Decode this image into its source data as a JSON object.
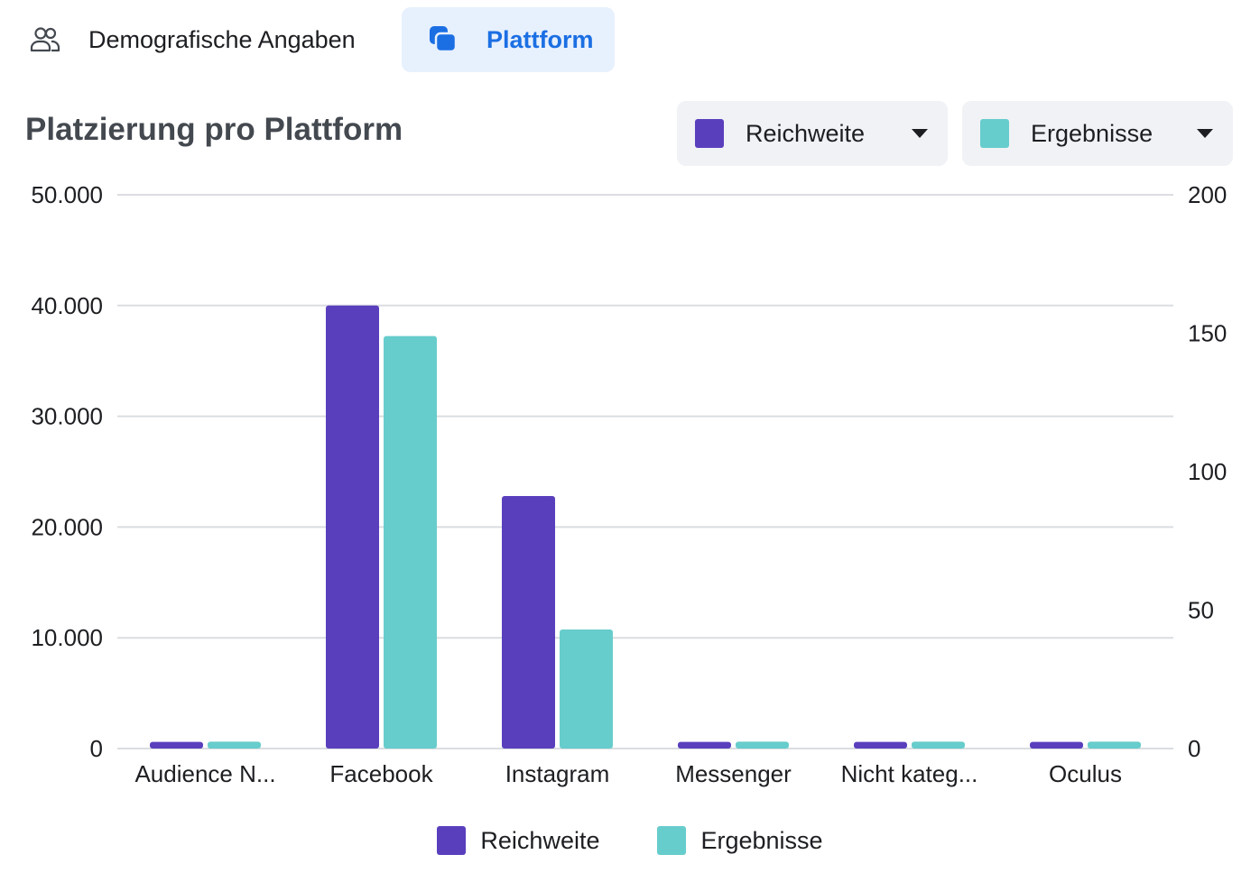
{
  "tabs": [
    {
      "label": "Demografische Angaben",
      "icon": "people-icon",
      "active": false
    },
    {
      "label": "Plattform",
      "icon": "platform-icon",
      "active": true
    }
  ],
  "title": "Platzierung pro Plattform",
  "selectors": [
    {
      "label": "Reichweite",
      "color": "#5a3fbd",
      "icon": "caret-down-icon"
    },
    {
      "label": "Ergebnisse",
      "color": "#67cccc",
      "icon": "caret-down-icon"
    }
  ],
  "colors": {
    "accent": "#1b6fe3",
    "tab_active_bg": "#e7f0fd",
    "reichweite": "#5a3fbd",
    "ergebnisse": "#67cccc",
    "grid": "#dadde1"
  },
  "chart_data": {
    "type": "bar",
    "title": "Platzierung pro Plattform",
    "categories": [
      "Audience N...",
      "Facebook",
      "Instagram",
      "Messenger",
      "Nicht kateg...",
      "Oculus"
    ],
    "series": [
      {
        "name": "Reichweite",
        "axis": "left",
        "color": "#5a3fbd",
        "values": [
          600,
          40000,
          22800,
          600,
          600,
          600
        ]
      },
      {
        "name": "Ergebnisse",
        "axis": "right",
        "color": "#67cccc",
        "values": [
          2.5,
          149,
          43,
          2.5,
          2.5,
          2.5
        ]
      }
    ],
    "ylim_left": [
      0,
      50000
    ],
    "ylim_right": [
      0,
      200
    ],
    "yticks_left": [
      {
        "value": 0,
        "label": "0"
      },
      {
        "value": 10000,
        "label": "10.000"
      },
      {
        "value": 20000,
        "label": "20.000"
      },
      {
        "value": 30000,
        "label": "30.000"
      },
      {
        "value": 40000,
        "label": "40.000"
      },
      {
        "value": 50000,
        "label": "50.000"
      }
    ],
    "yticks_right": [
      {
        "value": 0,
        "label": "0"
      },
      {
        "value": 50,
        "label": "50"
      },
      {
        "value": 100,
        "label": "100"
      },
      {
        "value": 150,
        "label": "150"
      },
      {
        "value": 200,
        "label": "200"
      }
    ],
    "grid": true,
    "legend_position": "bottom-center",
    "legend": [
      "Reichweite",
      "Ergebnisse"
    ]
  }
}
